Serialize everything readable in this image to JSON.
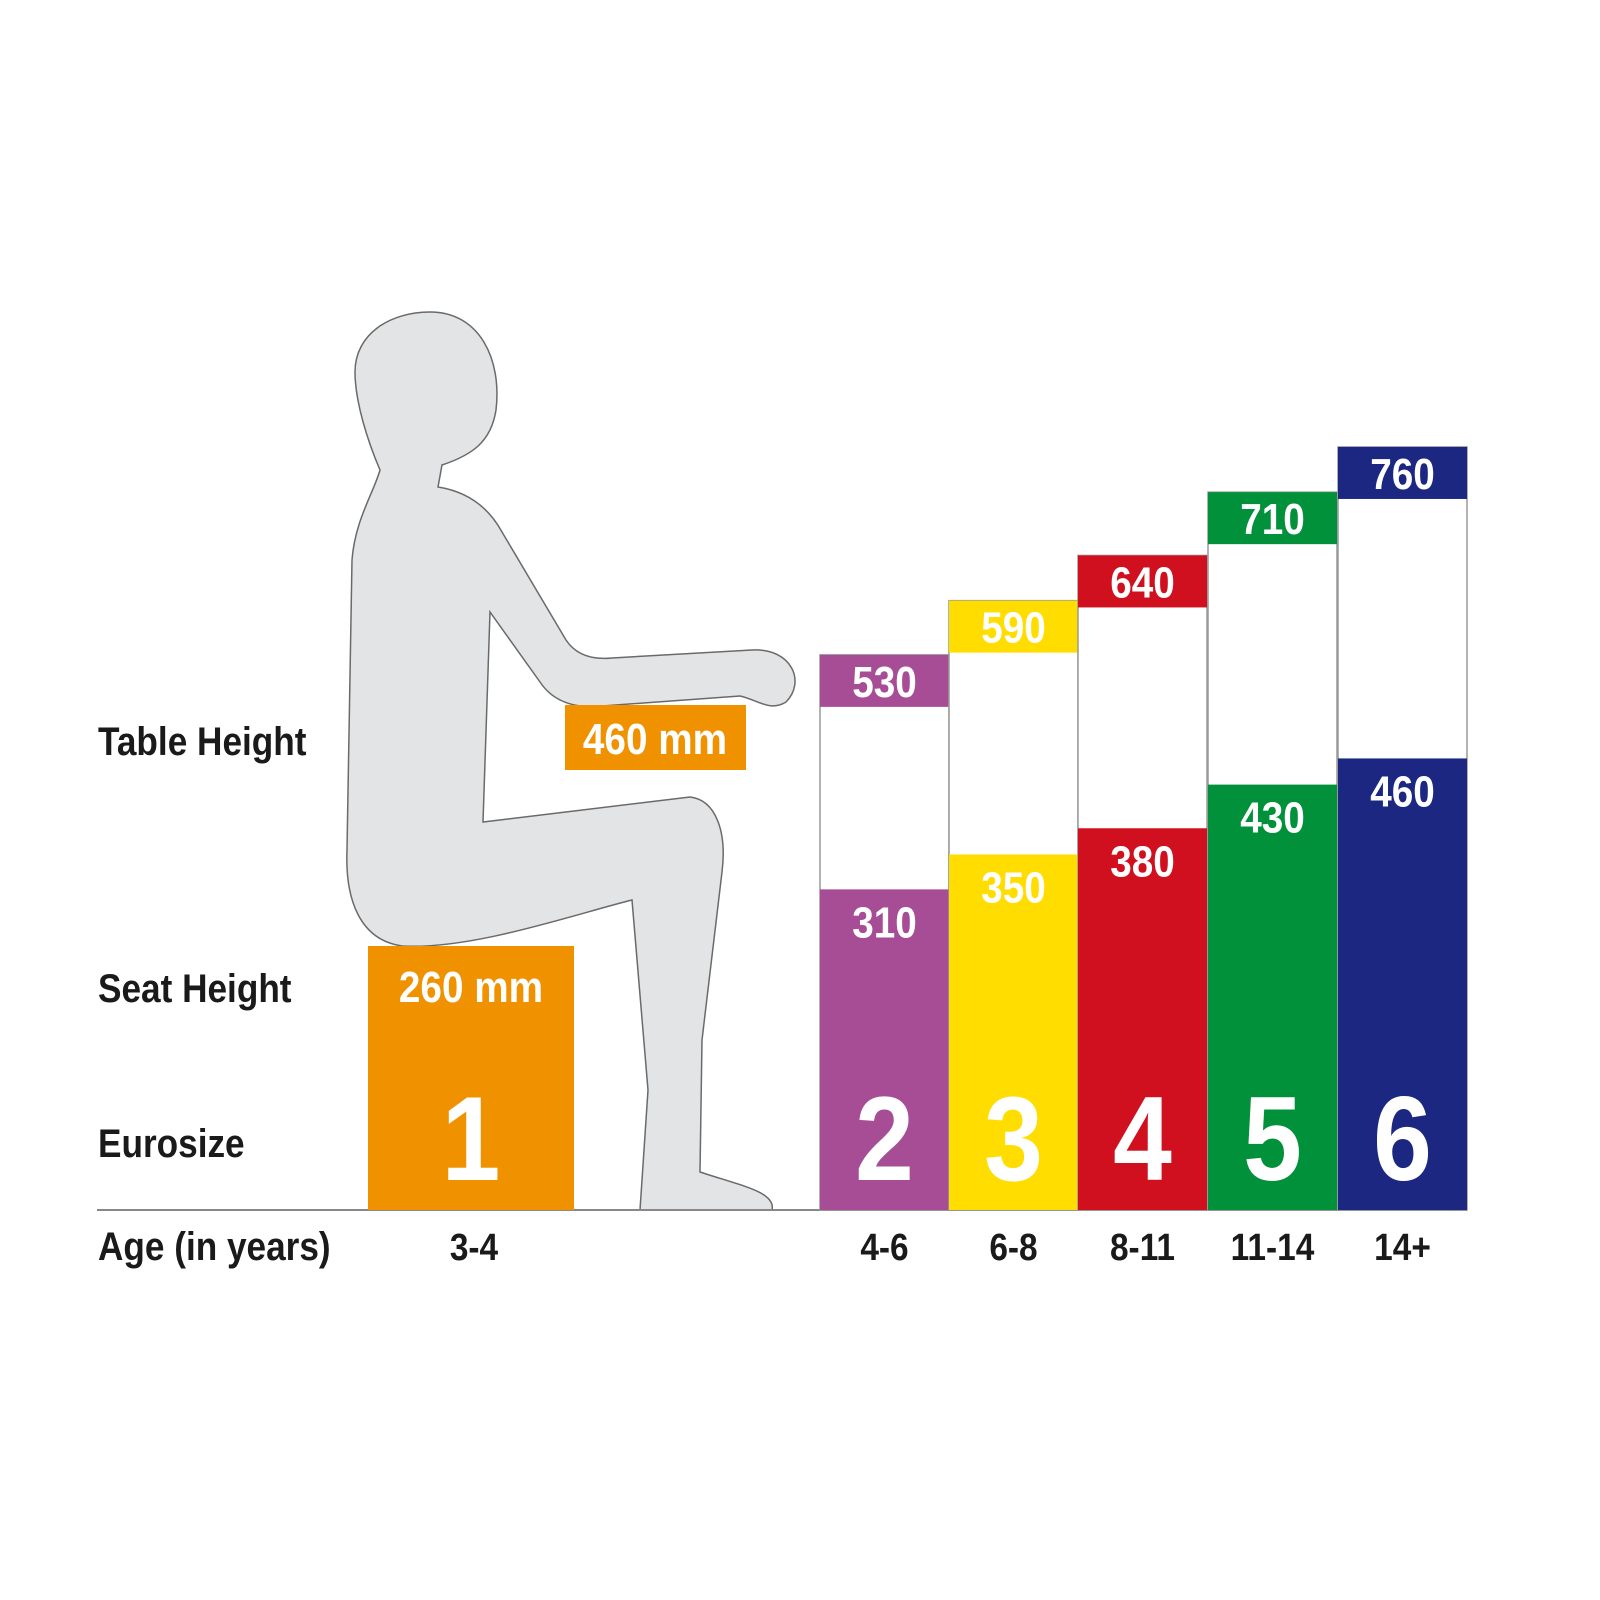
{
  "chart_data": {
    "type": "bar",
    "row_labels": {
      "table_height": "Table Height",
      "seat_height": "Seat Height",
      "eurosize": "Eurosize",
      "age": "Age (in years)"
    },
    "unit": "mm",
    "sizes": [
      {
        "eurosize": "1",
        "age": "3-4",
        "seat_height": 260,
        "table_height": 460,
        "color": "#f09100",
        "seat_label": "260 mm",
        "table_label": "460 mm"
      },
      {
        "eurosize": "2",
        "age": "4-6",
        "seat_height": 310,
        "table_height": 530,
        "color": "#a64d96",
        "seat_label": "310",
        "table_label": "530"
      },
      {
        "eurosize": "3",
        "age": "6-8",
        "seat_height": 350,
        "table_height": 590,
        "color": "#ffdd00",
        "seat_label": "350",
        "table_label": "590"
      },
      {
        "eurosize": "4",
        "age": "8-11",
        "seat_height": 380,
        "table_height": 640,
        "color": "#d0101f",
        "seat_label": "380",
        "table_label": "640"
      },
      {
        "eurosize": "5",
        "age": "11-14",
        "seat_height": 430,
        "table_height": 710,
        "color": "#00913a",
        "seat_label": "430",
        "table_label": "710"
      },
      {
        "eurosize": "6",
        "age": "14+",
        "seat_height": 460,
        "table_height": 760,
        "color": "#1b2781",
        "seat_label": "460",
        "table_label": "760"
      }
    ],
    "figure_color": "#e3e4e5"
  }
}
